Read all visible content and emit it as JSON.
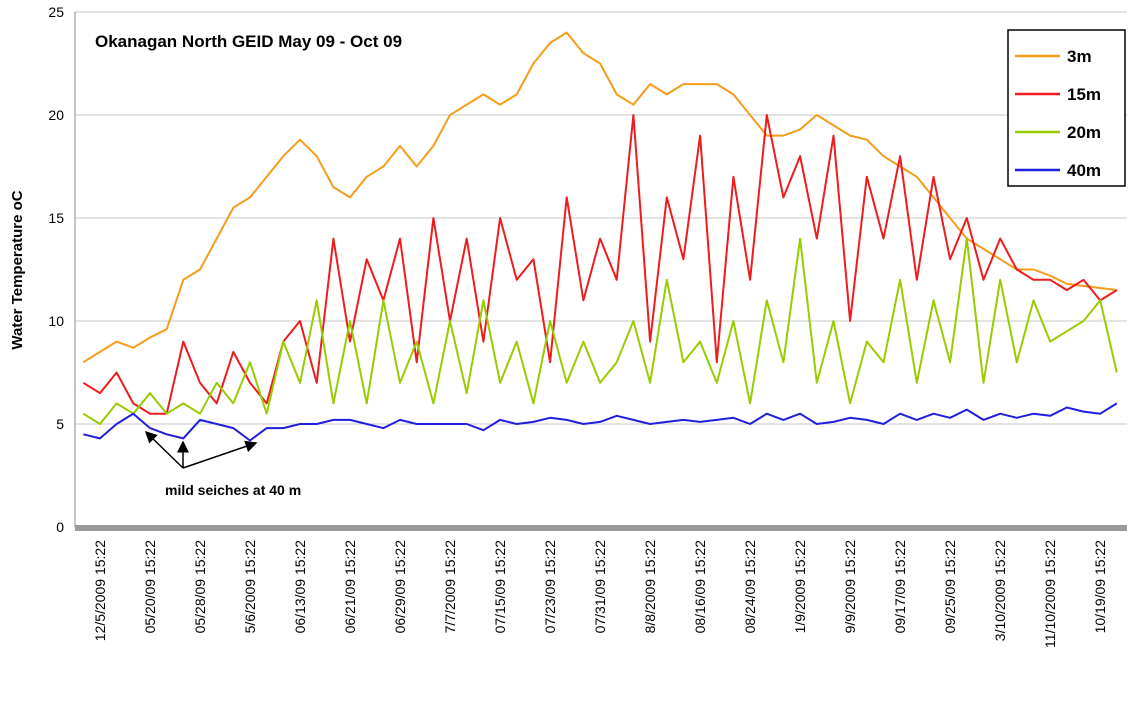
{
  "chart_data": {
    "type": "line",
    "title": "Okanagan North  GEID May 09 - Oct 09",
    "y_label": "Water Temperature oC",
    "annotation": "mild seiches at 40 m",
    "ylim": [
      0,
      25
    ],
    "yticks": [
      0,
      5,
      10,
      15,
      20,
      25
    ],
    "grid": true,
    "legend": "upper right",
    "categories": [
      null,
      "12/5/2009 15:22",
      null,
      null,
      "05/20/09 15:22",
      null,
      null,
      "05/28/09 15:22",
      null,
      null,
      "5/6/2009 15:22",
      null,
      null,
      "06/13/09 15:22",
      null,
      null,
      "06/21/09 15:22",
      null,
      null,
      "06/29/09 15:22",
      null,
      null,
      "7/7/2009 15:22",
      null,
      null,
      "07/15/09 15:22",
      null,
      null,
      "07/23/09 15:22",
      null,
      null,
      "07/31/09 15:22",
      null,
      null,
      "8/8/2009 15:22",
      null,
      null,
      "08/16/09 15:22",
      null,
      null,
      "08/24/09 15:22",
      null,
      null,
      "1/9/2009 15:22",
      null,
      null,
      "9/9/2009 15:22",
      null,
      null,
      "09/17/09 15:22",
      null,
      null,
      "09/25/09 15:22",
      null,
      null,
      "3/10/2009 15:22",
      null,
      null,
      "11/10/2009 15:22",
      null,
      null,
      "10/19/09 15:22",
      null
    ],
    "series": [
      {
        "name": "3m",
        "color": "#f59c1a",
        "values": [
          8,
          8.5,
          9,
          8.7,
          9.2,
          9.6,
          12,
          12.5,
          14,
          15.5,
          16,
          17,
          18,
          18.8,
          18,
          16.5,
          16,
          17,
          17.5,
          18.5,
          17.5,
          18.5,
          20,
          20.5,
          21,
          20.5,
          21,
          22.5,
          23.5,
          24,
          23,
          22.5,
          21,
          20.5,
          21.5,
          21,
          21.5,
          21.5,
          21.5,
          21,
          20,
          19,
          19,
          19.3,
          20,
          19.5,
          19,
          18.8,
          18,
          17.5,
          17,
          16,
          15,
          14,
          13.5,
          13,
          12.5,
          12.5,
          12.2,
          11.8,
          11.7,
          11.6,
          11.5
        ]
      },
      {
        "name": "15m",
        "color": "#ee1c1c",
        "values": [
          7,
          6.5,
          7.5,
          6,
          5.5,
          5.5,
          9,
          7,
          6,
          8.5,
          7,
          6,
          9,
          10,
          7,
          14,
          9,
          13,
          11,
          14,
          8,
          15,
          10,
          14,
          9,
          15,
          12,
          13,
          8,
          16,
          11,
          14,
          12,
          20,
          9,
          16,
          13,
          19,
          8,
          17,
          12,
          20,
          16,
          18,
          14,
          19,
          10,
          17,
          14,
          18,
          12,
          17,
          13,
          15,
          12,
          14,
          12.5,
          12,
          12,
          11.5,
          12,
          11,
          11.5
        ]
      },
      {
        "name": "20m",
        "color": "#99cc00",
        "values": [
          5.5,
          5,
          6,
          5.5,
          6.5,
          5.5,
          6,
          5.5,
          7,
          6,
          8,
          5.5,
          9,
          7,
          11,
          6,
          10,
          6,
          11,
          7,
          9,
          6,
          10,
          6.5,
          11,
          7,
          9,
          6,
          10,
          7,
          9,
          7,
          8,
          10,
          7,
          12,
          8,
          9,
          7,
          10,
          6,
          11,
          8,
          14,
          7,
          10,
          6,
          9,
          8,
          12,
          7,
          11,
          8,
          14,
          7,
          12,
          8,
          11,
          9,
          9.5,
          10,
          11,
          7.5
        ]
      },
      {
        "name": "40m",
        "color": "#1f1fe0",
        "values": [
          4.5,
          4.3,
          5,
          5.5,
          4.8,
          4.5,
          4.3,
          5.2,
          5,
          4.8,
          4.2,
          4.8,
          4.8,
          5,
          5,
          5.2,
          5.2,
          5,
          4.8,
          5.2,
          5,
          5,
          5,
          5,
          4.7,
          5.2,
          5,
          5.1,
          5.3,
          5.2,
          5,
          5.1,
          5.4,
          5.2,
          5,
          5.1,
          5.2,
          5.1,
          5.2,
          5.3,
          5,
          5.5,
          5.2,
          5.5,
          5,
          5.1,
          5.3,
          5.2,
          5,
          5.5,
          5.2,
          5.5,
          5.3,
          5.7,
          5.2,
          5.5,
          5.3,
          5.5,
          5.4,
          5.8,
          5.6,
          5.5,
          6
        ]
      }
    ]
  }
}
